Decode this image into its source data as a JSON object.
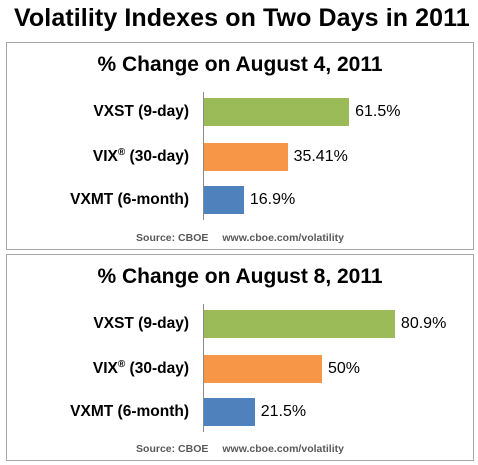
{
  "title": "Volatility Indexes on Two Days in 2011",
  "chart_data": [
    {
      "type": "bar",
      "orientation": "horizontal",
      "title": "% Change on August 4, 2011",
      "categories": [
        "VXST (9-day)",
        "VIX® (30-day)",
        "VXMT (6-month)"
      ],
      "values": [
        61.5,
        35.41,
        16.9
      ],
      "value_labels": [
        "61.5%",
        "35.41%",
        "16.9%"
      ],
      "colors": [
        "#9bbb59",
        "#f79646",
        "#4f81bd"
      ],
      "xlim": [
        0,
        100
      ],
      "grid": false,
      "source": "Source: CBOE",
      "source_url": "www.cboe.com/volatility"
    },
    {
      "type": "bar",
      "orientation": "horizontal",
      "title": "% Change on August 8, 2011",
      "categories": [
        "VXST (9-day)",
        "VIX® (30-day)",
        "VXMT (6-month)"
      ],
      "values": [
        80.9,
        50,
        21.5
      ],
      "value_labels": [
        "80.9%",
        "50%",
        "21.5%"
      ],
      "colors": [
        "#9bbb59",
        "#f79646",
        "#4f81bd"
      ],
      "xlim": [
        0,
        100
      ],
      "grid": false,
      "source": "Source: CBOE",
      "source_url": "www.cboe.com/volatility"
    }
  ]
}
